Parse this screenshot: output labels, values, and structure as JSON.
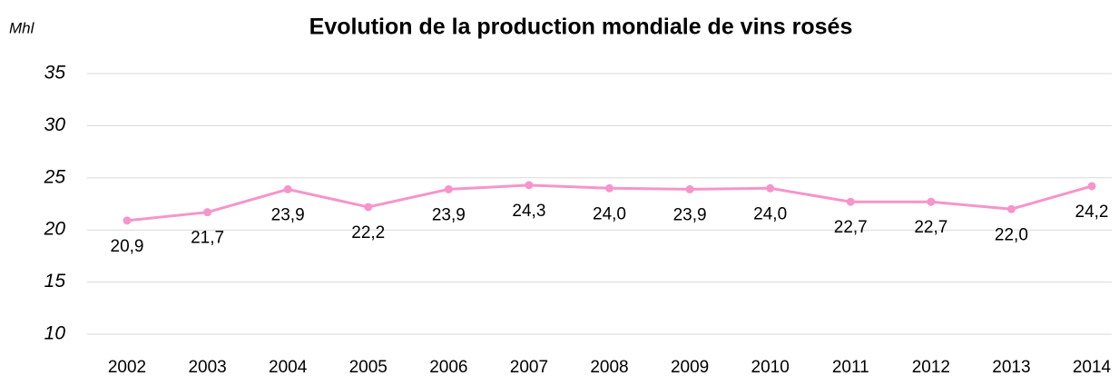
{
  "chart_data": {
    "type": "line",
    "title": "Evolution de la production mondiale de vins rosés",
    "y_label": "Mhl",
    "categories": [
      "2002",
      "2003",
      "2004",
      "2005",
      "2006",
      "2007",
      "2008",
      "2009",
      "2010",
      "2011",
      "2012",
      "2013",
      "2014"
    ],
    "series": [
      {
        "color": "#f595cb",
        "values": [
          20.9,
          21.7,
          23.9,
          22.2,
          23.9,
          24.3,
          24.0,
          23.9,
          24.0,
          22.7,
          22.7,
          22.0,
          24.2
        ],
        "value_labels": [
          "20,9",
          "21,7",
          "23,9",
          "22,2",
          "23,9",
          "24,3",
          "24,0",
          "23,9",
          "24,0",
          "22,7",
          "22,7",
          "22,0",
          "24,2"
        ]
      }
    ],
    "ylim": [
      10,
      35
    ],
    "yticks": [
      10,
      15,
      20,
      25,
      30,
      35
    ],
    "grid": true
  }
}
